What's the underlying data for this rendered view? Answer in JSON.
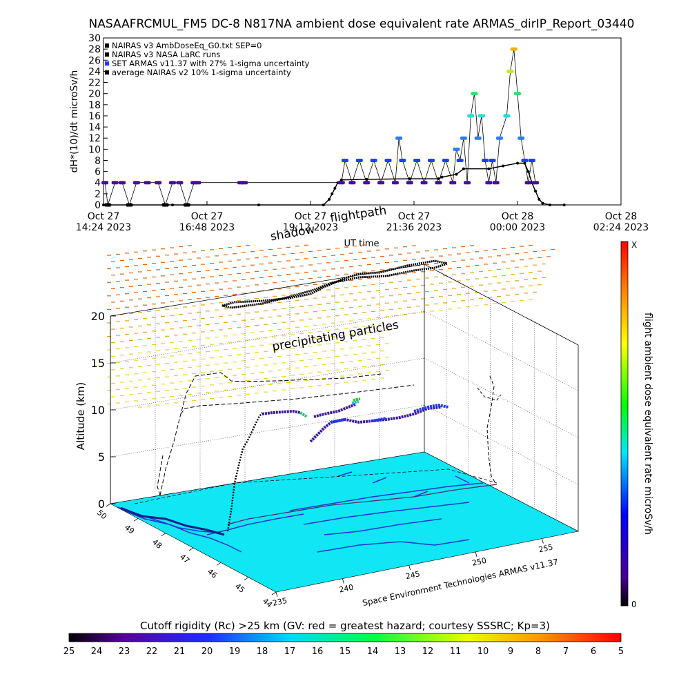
{
  "header": {
    "title": "NASAAFRCMUL_FM5 DC-8   N817NA ambient dose equivalent rate ARMAS_dirIP_Report_03440"
  },
  "chart_data": [
    {
      "type": "scatter",
      "ylabel": "dH*(10)/dt microSv/h",
      "xlabel": "UT time",
      "ylim": [
        0,
        30
      ],
      "yticks": [
        0,
        2,
        4,
        6,
        8,
        10,
        12,
        14,
        16,
        18,
        20,
        22,
        24,
        26,
        28,
        30
      ],
      "xlim": [
        "2023-10-27 14:24",
        "2023-10-28 02:24"
      ],
      "xticks": [
        {
          "t": "2023-10-27 14:24",
          "line1": "Oct 27",
          "line2": "14:24 2023"
        },
        {
          "t": "2023-10-27 16:48",
          "line1": "Oct 27",
          "line2": "16:48 2023"
        },
        {
          "t": "2023-10-27 19:12",
          "line1": "Oct 27",
          "line2": "19:12 2023"
        },
        {
          "t": "2023-10-27 21:36",
          "line1": "Oct 27",
          "line2": "21:36 2023"
        },
        {
          "t": "2023-10-28 00:00",
          "line1": "Oct 28",
          "line2": "00:00 2023"
        },
        {
          "t": "2023-10-28 02:24",
          "line1": "Oct 28",
          "line2": "02:24 2023"
        }
      ],
      "legend_position": "top-left",
      "legend": [
        {
          "label": "NAIRAS v3 AmbDoseEq_G0.txt SEP=0",
          "color": "#000000"
        },
        {
          "label": "NAIRAS v3 NASA LaRC runs",
          "color": "#000000"
        },
        {
          "label": "SET ARMAS v11.37 with 27% 1-sigma uncertainty",
          "color": "#1f3cff"
        },
        {
          "label": "average NAIRAS v2 10% 1-sigma uncertainty",
          "color": "#000000"
        }
      ],
      "series": [
        {
          "name": "NAIRAS v3 AmbDoseEq_G0.txt SEP=0",
          "color": "#000000",
          "points": [
            [
              "2023-10-27 14:24",
              0
            ],
            [
              "2023-10-27 16:00",
              0
            ],
            [
              "2023-10-27 18:00",
              0
            ],
            [
              "2023-10-27 19:30",
              0
            ],
            [
              "2023-10-27 19:38",
              1.0
            ],
            [
              "2023-10-27 19:42",
              2.0
            ],
            [
              "2023-10-27 19:46",
              3.0
            ],
            [
              "2023-10-27 19:50",
              4.0
            ],
            [
              "2023-10-27 19:55",
              4.5
            ],
            [
              "2023-10-27 20:30",
              4.6
            ],
            [
              "2023-10-27 21:30",
              4.7
            ],
            [
              "2023-10-27 22:10",
              4.7
            ],
            [
              "2023-10-27 22:15",
              5.0
            ],
            [
              "2023-10-27 22:35",
              5.5
            ],
            [
              "2023-10-27 22:45",
              6.5
            ],
            [
              "2023-10-27 23:20",
              6.5
            ],
            [
              "2023-10-27 23:40",
              7.0
            ],
            [
              "2023-10-28 00:00",
              7.5
            ],
            [
              "2023-10-28 00:10",
              7.5
            ],
            [
              "2023-10-28 00:15",
              6.0
            ],
            [
              "2023-10-28 00:20",
              4.0
            ],
            [
              "2023-10-28 00:25",
              2.5
            ],
            [
              "2023-10-28 00:30",
              1.0
            ],
            [
              "2023-10-28 00:35",
              0.3
            ],
            [
              "2023-10-28 00:45",
              0
            ],
            [
              "2023-10-28 01:05",
              0
            ]
          ]
        },
        {
          "name": "SET ARMAS v11.37 with 27% 1-sigma uncertainty",
          "points": [
            [
              "2023-10-27 14:26",
              4
            ],
            [
              "2023-10-27 14:30",
              0
            ],
            [
              "2023-10-27 14:40",
              4
            ],
            [
              "2023-10-27 14:50",
              4
            ],
            [
              "2023-10-27 15:00",
              0
            ],
            [
              "2023-10-27 15:10",
              4
            ],
            [
              "2023-10-27 15:25",
              4
            ],
            [
              "2023-10-27 15:40",
              4
            ],
            [
              "2023-10-27 15:50",
              0
            ],
            [
              "2023-10-27 16:00",
              4
            ],
            [
              "2023-10-27 16:10",
              4
            ],
            [
              "2023-10-27 16:20",
              0
            ],
            [
              "2023-10-27 16:30",
              4
            ],
            [
              "2023-10-27 16:35",
              4
            ],
            [
              "2023-10-27 17:35",
              4
            ],
            [
              "2023-10-27 17:40",
              4
            ],
            [
              "2023-10-27 19:55",
              4
            ],
            [
              "2023-10-27 20:00",
              8
            ],
            [
              "2023-10-27 20:10",
              4
            ],
            [
              "2023-10-27 20:20",
              8
            ],
            [
              "2023-10-27 20:30",
              4
            ],
            [
              "2023-10-27 20:40",
              8
            ],
            [
              "2023-10-27 20:50",
              4
            ],
            [
              "2023-10-27 21:00",
              8
            ],
            [
              "2023-10-27 21:10",
              4
            ],
            [
              "2023-10-27 21:15",
              12
            ],
            [
              "2023-10-27 21:20",
              8
            ],
            [
              "2023-10-27 21:30",
              4
            ],
            [
              "2023-10-27 21:40",
              8
            ],
            [
              "2023-10-27 21:50",
              4
            ],
            [
              "2023-10-27 22:00",
              8
            ],
            [
              "2023-10-27 22:10",
              4
            ],
            [
              "2023-10-27 22:20",
              8
            ],
            [
              "2023-10-27 22:30",
              4
            ],
            [
              "2023-10-27 22:35",
              10
            ],
            [
              "2023-10-27 22:40",
              8
            ],
            [
              "2023-10-27 22:45",
              12
            ],
            [
              "2023-10-27 22:50",
              4
            ],
            [
              "2023-10-27 22:55",
              16
            ],
            [
              "2023-10-27 23:00",
              20
            ],
            [
              "2023-10-27 23:05",
              12
            ],
            [
              "2023-10-27 23:10",
              16
            ],
            [
              "2023-10-27 23:15",
              8
            ],
            [
              "2023-10-27 23:20",
              4
            ],
            [
              "2023-10-27 23:25",
              8
            ],
            [
              "2023-10-27 23:30",
              4
            ],
            [
              "2023-10-27 23:35",
              12
            ],
            [
              "2023-10-27 23:45",
              16
            ],
            [
              "2023-10-27 23:50",
              24
            ],
            [
              "2023-10-27 23:55",
              28
            ],
            [
              "2023-10-28 00:00",
              20
            ],
            [
              "2023-10-28 00:05",
              12
            ],
            [
              "2023-10-28 00:10",
              8
            ],
            [
              "2023-10-28 00:15",
              4
            ],
            [
              "2023-10-28 00:20",
              8
            ],
            [
              "2023-10-28 00:25",
              4
            ]
          ]
        }
      ]
    },
    {
      "type": "scatter",
      "title": "flightpath",
      "subtitle": "shadow",
      "zlabel": "Altitude (km)",
      "zticks": [
        0,
        5,
        10,
        15,
        20
      ],
      "lat_ticks": [
        44,
        45,
        46,
        47,
        48,
        49,
        50
      ],
      "lon_ticks": [
        235,
        240,
        245,
        250,
        255
      ],
      "annotations": [
        "precipitating particles"
      ],
      "credit": "Space Environment Technologies ARMAS v11.37",
      "colorbar": {
        "label": "flight ambient dose equivalent rate microSv/h",
        "top_label": "X",
        "bottom_label": "0",
        "orientation": "vertical"
      }
    }
  ],
  "colorbar_rigidity": {
    "label": "Cutoff rigidity (Rc) >25 km (GV: red = greatest hazard; courtesy SSSRC; Kp=3)",
    "ticks": [
      "25",
      "24",
      "23",
      "22",
      "21",
      "20",
      "19",
      "18",
      "17",
      "16",
      "15",
      "14",
      "13",
      "12",
      "11",
      "10",
      "9",
      "8",
      "7",
      "6",
      "5"
    ]
  },
  "colors": {
    "surface": "#11e6f5",
    "flightpath": "#000000",
    "armas": "#1f3cff"
  }
}
